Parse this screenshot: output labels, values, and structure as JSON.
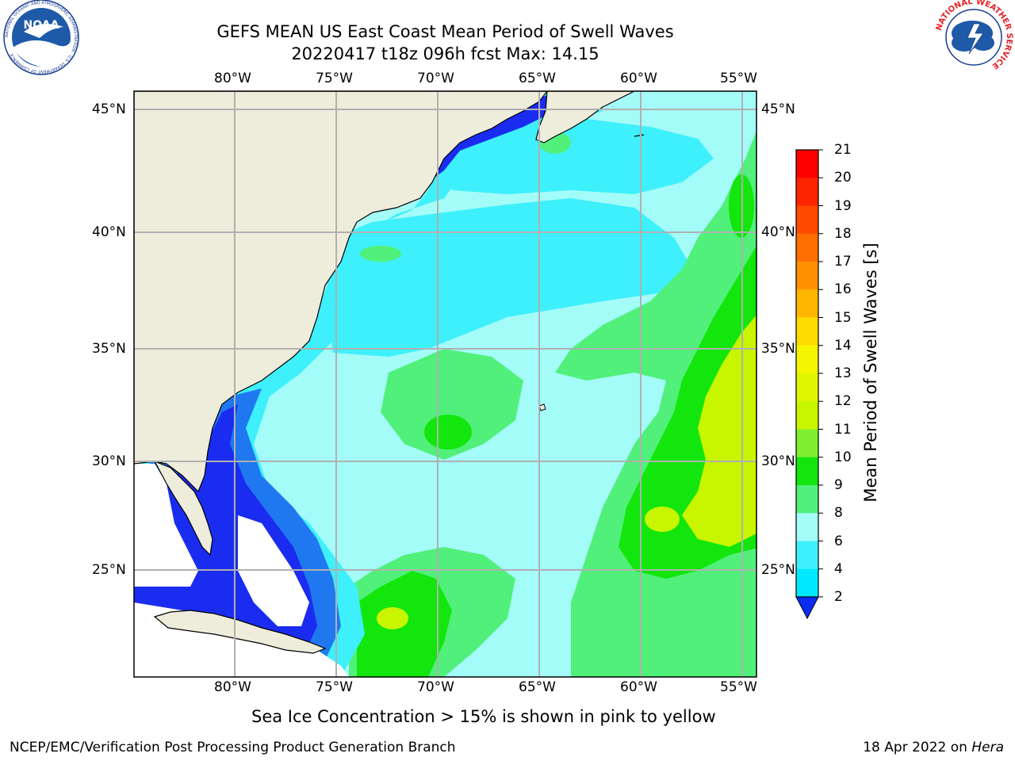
{
  "title": {
    "line1": "GEFS MEAN US East Coast Mean Period of Swell Waves",
    "line2": "20220417 t18z 096h fcst   Max: 14.15"
  },
  "logos": {
    "noaa": "NOAA",
    "noaa_ring": "NATIONAL OCEANIC AND ATMOSPHERIC ADMINISTRATION · U.S. DEPARTMENT OF COMMERCE",
    "nws_ring": "NATIONAL WEATHER SERVICE"
  },
  "map": {
    "lon_ticks": [
      "80°W",
      "75°W",
      "70°W",
      "65°W",
      "60°W",
      "55°W"
    ],
    "lat_ticks": [
      "45°N",
      "40°N",
      "35°N",
      "30°N",
      "25°N"
    ],
    "colors": {
      "land": "#eeeddc",
      "blue": "#1a2cf0",
      "mid_blue": "#1f78f0",
      "cyan": "#3ef0fb",
      "light_cyan": "#a4fcf9",
      "green": "#50f07a",
      "bright_green": "#12e60c",
      "yellow_green": "#c8f500",
      "no_data": "#ffffff",
      "grid": "#b0b0b0",
      "coast": "#000000"
    }
  },
  "colorbar": {
    "label": "Mean Period of Swell Waves [s]",
    "ticks": [
      "21",
      "20",
      "19",
      "18",
      "17",
      "16",
      "15",
      "14",
      "13",
      "12",
      "11",
      "10",
      "9",
      "8",
      "6",
      "4",
      "2"
    ],
    "colors": [
      "#ff0000",
      "#ff2400",
      "#ff4a00",
      "#ff6e00",
      "#ff9200",
      "#ffb600",
      "#ffdc00",
      "#f6f500",
      "#e0f500",
      "#c8f500",
      "#7ef030",
      "#12e60c",
      "#50f07a",
      "#a4fcf9",
      "#3ef0fb",
      "#00e8ff",
      "#1f78f0",
      "#0a2cf5"
    ]
  },
  "caption": "Sea Ice Concentration > 15% is shown in pink to yellow",
  "footer": {
    "left": "NCEP/EMC/Verification Post Processing Product Generation Branch",
    "right_date": "18 Apr 2022 on ",
    "right_host": "Hera"
  }
}
